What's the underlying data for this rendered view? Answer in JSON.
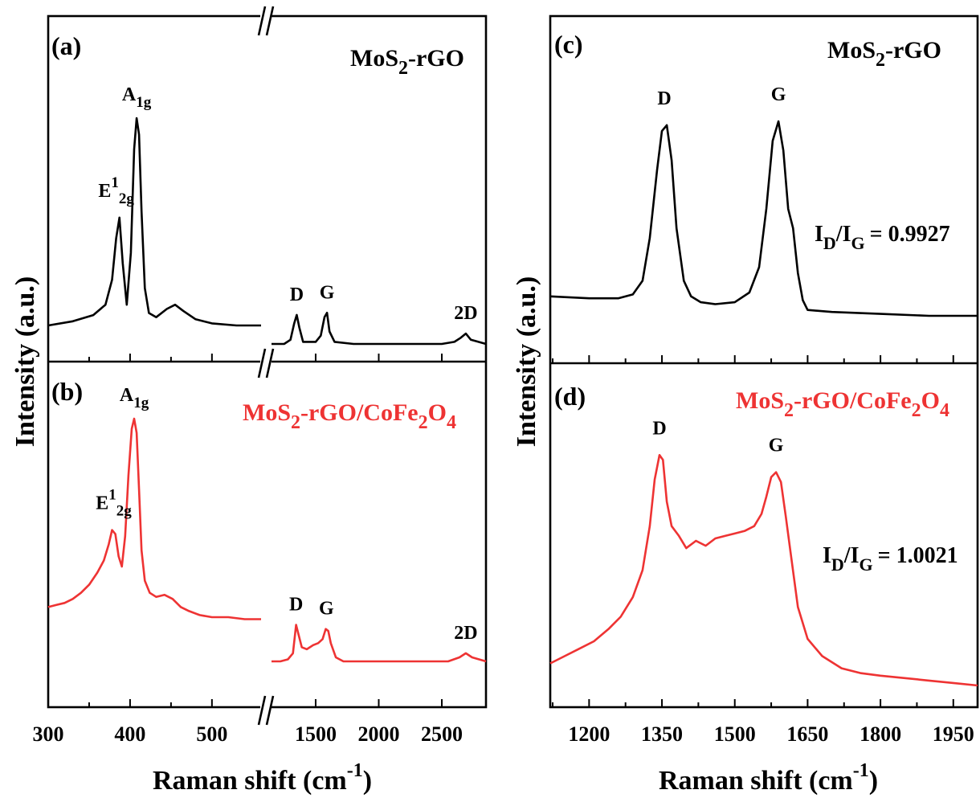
{
  "colors": {
    "black_series": "#000000",
    "red_series": "#ee3333"
  },
  "chart_data": [
    {
      "panel": "(a)",
      "type": "line",
      "series_name": "MoS2-rGO",
      "color": "#000000",
      "x_axis": "broken",
      "segment_1": {
        "xlim": [
          300,
          560
        ],
        "ticks": [
          300,
          400,
          500
        ],
        "x": [
          300,
          330,
          355,
          370,
          378,
          383,
          387,
          391,
          396,
          401,
          405,
          408,
          411,
          414,
          418,
          423,
          432,
          445,
          455,
          465,
          480,
          500,
          530,
          560
        ],
        "y": [
          0.0,
          0.02,
          0.05,
          0.1,
          0.22,
          0.42,
          0.52,
          0.3,
          0.1,
          0.35,
          0.85,
          1.0,
          0.92,
          0.55,
          0.18,
          0.06,
          0.04,
          0.08,
          0.1,
          0.07,
          0.03,
          0.01,
          0.0,
          0.0
        ]
      },
      "segment_2": {
        "xlim": [
          1150,
          2850
        ],
        "ticks": [
          1500,
          2000,
          2500
        ],
        "x": [
          1150,
          1250,
          1300,
          1330,
          1350,
          1370,
          1400,
          1500,
          1540,
          1570,
          1590,
          1610,
          1650,
          1800,
          2000,
          2300,
          2500,
          2600,
          2650,
          2690,
          2730,
          2850
        ],
        "y": [
          0.0,
          0.0,
          0.02,
          0.1,
          0.14,
          0.08,
          0.01,
          0.01,
          0.04,
          0.13,
          0.15,
          0.06,
          0.01,
          0.0,
          0.0,
          0.0,
          0.0,
          0.01,
          0.03,
          0.05,
          0.02,
          0.0
        ]
      },
      "peak_labels": [
        {
          "text": "E",
          "sup": "1",
          "sub": "2g",
          "x": 383
        },
        {
          "text": "A",
          "sub": "1g",
          "x": 408
        },
        {
          "text": "D",
          "x": 1350
        },
        {
          "text": "G",
          "x": 1590
        },
        {
          "text": "2D",
          "x": 2690
        }
      ]
    },
    {
      "panel": "(b)",
      "type": "line",
      "series_name": "MoS2-rGO/CoFe2O4",
      "color": "#ee3333",
      "x_axis": "broken",
      "xlabel": "Raman shift (cm-1)",
      "segment_1": {
        "xlim": [
          300,
          560
        ],
        "ticks": [
          300,
          400,
          500
        ],
        "x": [
          300,
          310,
          320,
          330,
          340,
          350,
          360,
          368,
          374,
          378,
          382,
          386,
          390,
          394,
          398,
          402,
          405,
          408,
          411,
          414,
          418,
          424,
          432,
          442,
          452,
          462,
          472,
          485,
          500,
          520,
          540,
          560
        ],
        "y": [
          0.07,
          0.08,
          0.09,
          0.11,
          0.14,
          0.18,
          0.24,
          0.3,
          0.38,
          0.45,
          0.43,
          0.32,
          0.27,
          0.42,
          0.72,
          0.95,
          1.0,
          0.93,
          0.65,
          0.35,
          0.2,
          0.14,
          0.12,
          0.13,
          0.11,
          0.07,
          0.05,
          0.03,
          0.02,
          0.02,
          0.01,
          0.01
        ]
      },
      "segment_2": {
        "xlim": [
          1150,
          2850
        ],
        "ticks": [
          1500,
          2000,
          2500
        ],
        "x": [
          1150,
          1220,
          1280,
          1320,
          1345,
          1365,
          1390,
          1430,
          1480,
          1520,
          1555,
          1580,
          1600,
          1620,
          1660,
          1720,
          1850,
          2000,
          2200,
          2400,
          2550,
          2640,
          2690,
          2740,
          2850
        ],
        "y": [
          0.0,
          0.0,
          0.01,
          0.04,
          0.18,
          0.13,
          0.07,
          0.06,
          0.08,
          0.09,
          0.11,
          0.16,
          0.15,
          0.09,
          0.02,
          0.0,
          0.0,
          0.0,
          0.0,
          0.0,
          0.0,
          0.02,
          0.04,
          0.02,
          0.0
        ]
      },
      "peak_labels": [
        {
          "text": "E",
          "sup": "1",
          "sub": "2g",
          "x": 380
        },
        {
          "text": "A",
          "sub": "1g",
          "x": 405
        },
        {
          "text": "D",
          "x": 1345
        },
        {
          "text": "G",
          "x": 1585
        },
        {
          "text": "2D",
          "x": 2690
        }
      ]
    },
    {
      "panel": "(c)",
      "type": "line",
      "series_name": "MoS2-rGO",
      "color": "#000000",
      "xlim": [
        1120,
        2000
      ],
      "ticks": [
        1200,
        1350,
        1500,
        1650,
        1800,
        1950
      ],
      "x": [
        1120,
        1200,
        1260,
        1290,
        1310,
        1325,
        1340,
        1350,
        1360,
        1370,
        1380,
        1395,
        1410,
        1430,
        1460,
        1500,
        1530,
        1550,
        1565,
        1578,
        1590,
        1600,
        1610,
        1620,
        1630,
        1640,
        1650,
        1700,
        1800,
        1900,
        2000
      ],
      "y": [
        0.1,
        0.09,
        0.09,
        0.11,
        0.18,
        0.4,
        0.75,
        0.95,
        0.98,
        0.8,
        0.45,
        0.18,
        0.1,
        0.07,
        0.06,
        0.07,
        0.12,
        0.25,
        0.55,
        0.9,
        1.0,
        0.85,
        0.55,
        0.45,
        0.22,
        0.08,
        0.03,
        0.02,
        0.01,
        0.0,
        0.0
      ],
      "peak_labels": [
        {
          "text": "D",
          "x": 1355
        },
        {
          "text": "G",
          "x": 1590
        }
      ],
      "ratio": {
        "num": "I",
        "num_sub": "D",
        "den": "I",
        "den_sub": "G",
        "value": "= 0.9927"
      }
    },
    {
      "panel": "(d)",
      "type": "line",
      "series_name": "MoS2-rGO/CoFe2O4",
      "color": "#ee3333",
      "xlim": [
        1120,
        2000
      ],
      "ticks": [
        1200,
        1350,
        1500,
        1650,
        1800,
        1950
      ],
      "xlabel": "Raman shift (cm-1)",
      "x": [
        1120,
        1150,
        1180,
        1210,
        1240,
        1265,
        1290,
        1310,
        1325,
        1335,
        1345,
        1352,
        1360,
        1370,
        1385,
        1400,
        1420,
        1440,
        1460,
        1480,
        1500,
        1520,
        1540,
        1555,
        1565,
        1575,
        1585,
        1595,
        1605,
        1615,
        1630,
        1650,
        1680,
        1720,
        1760,
        1800,
        1850,
        1900,
        1950,
        2000
      ],
      "y": [
        0.1,
        0.13,
        0.16,
        0.19,
        0.24,
        0.29,
        0.37,
        0.48,
        0.66,
        0.85,
        0.95,
        0.93,
        0.76,
        0.66,
        0.62,
        0.57,
        0.6,
        0.58,
        0.61,
        0.62,
        0.63,
        0.64,
        0.66,
        0.71,
        0.78,
        0.86,
        0.88,
        0.84,
        0.7,
        0.55,
        0.33,
        0.2,
        0.13,
        0.08,
        0.06,
        0.05,
        0.04,
        0.03,
        0.02,
        0.01
      ],
      "peak_labels": [
        {
          "text": "D",
          "x": 1345
        },
        {
          "text": "G",
          "x": 1585
        }
      ],
      "ratio": {
        "num": "I",
        "num_sub": "D",
        "den": "I",
        "den_sub": "G",
        "value": "= 1.0021"
      }
    }
  ],
  "labels": {
    "ylabel_left": "Intensity (a.u.)",
    "ylabel_right": "Intensity (a.u.)",
    "xlabel_left": "Raman shift (cm",
    "xlabel_right": "Raman shift (cm",
    "xlabel_exp": "-1",
    "xlabel_close": ")",
    "series_black_pre": "MoS",
    "series_black_sub": "2",
    "series_black_post": "-rGO",
    "series_red_pre": "MoS",
    "series_red_sub1": "2",
    "series_red_mid": "-rGO/CoFe",
    "series_red_sub2": "2",
    "series_red_o": "O",
    "series_red_sub3": "4"
  }
}
